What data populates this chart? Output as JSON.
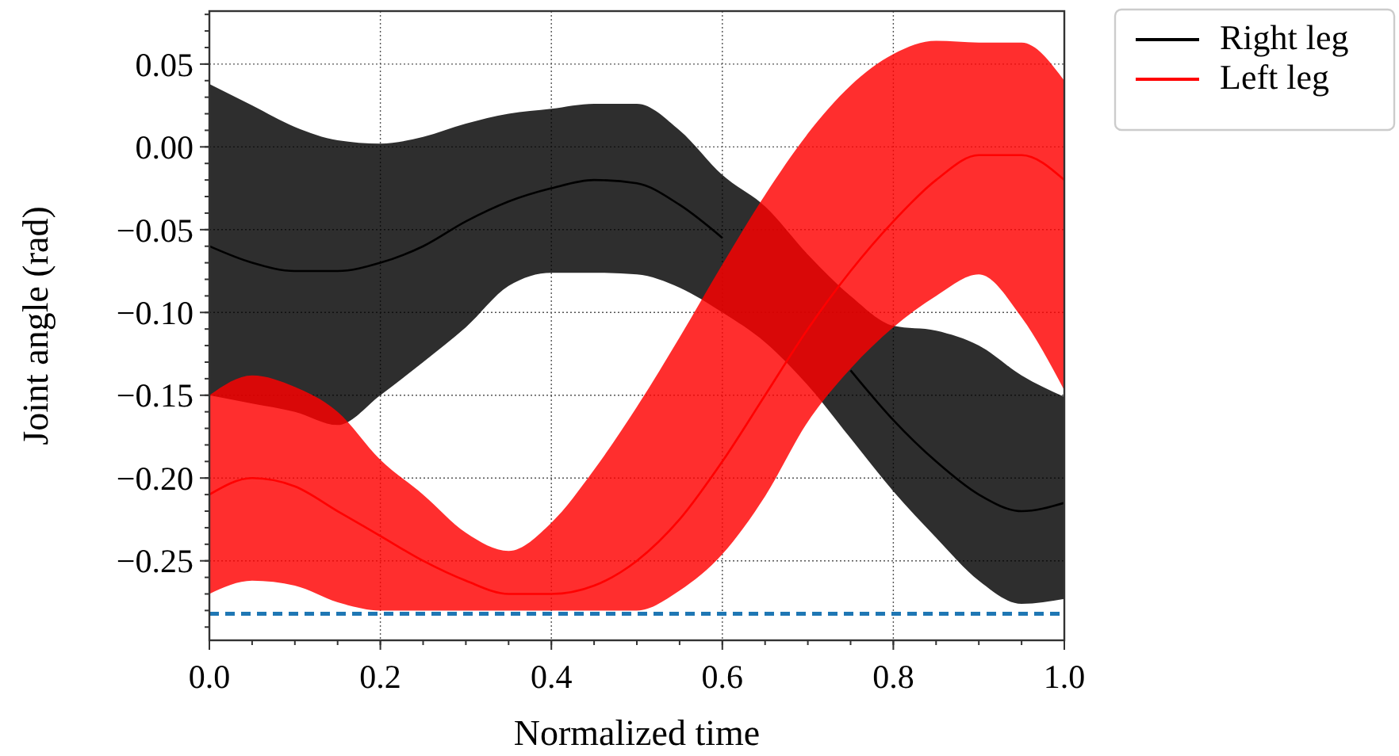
{
  "chart_data": {
    "type": "line",
    "xlabel": "Normalized time",
    "ylabel": "Joint angle (rad)",
    "x": [
      0,
      0.05,
      0.1,
      0.15,
      0.2,
      0.25,
      0.3,
      0.35,
      0.4,
      0.45,
      0.5,
      0.55,
      0.6,
      0.65,
      0.7,
      0.75,
      0.8,
      0.85,
      0.9,
      0.95,
      1.0
    ],
    "series": [
      {
        "name": "Right leg",
        "color": "#000000",
        "values": [
          -0.06,
          -0.07,
          -0.075,
          -0.075,
          -0.07,
          -0.06,
          -0.045,
          -0.033,
          -0.025,
          -0.02,
          -0.022,
          -0.035,
          -0.055,
          null,
          null,
          -0.135,
          -0.165,
          -0.19,
          -0.21,
          -0.22,
          -0.215
        ],
        "upper": [
          0.038,
          0.025,
          0.012,
          0.004,
          0.002,
          0.006,
          0.014,
          0.02,
          0.023,
          0.026,
          0.026,
          0.01,
          -0.017,
          -0.036,
          -0.065,
          -0.09,
          -0.108,
          -0.111,
          -0.12,
          -0.138,
          -0.151
        ],
        "lower": [
          -0.15,
          -0.155,
          -0.16,
          -0.168,
          -0.15,
          -0.13,
          -0.109,
          -0.084,
          -0.076,
          -0.076,
          -0.077,
          -0.085,
          -0.1,
          -0.118,
          -0.144,
          -0.176,
          -0.208,
          -0.236,
          -0.262,
          -0.276,
          -0.273
        ]
      },
      {
        "name": "Left leg",
        "color": "#ff0000",
        "values": [
          -0.21,
          -0.2,
          -0.205,
          -0.22,
          -0.235,
          -0.25,
          -0.262,
          -0.27,
          -0.27,
          -0.265,
          -0.25,
          -0.225,
          -0.19,
          -0.15,
          -0.11,
          -0.075,
          -0.045,
          -0.02,
          -0.005,
          -0.005,
          -0.02
        ],
        "upper": [
          -0.15,
          -0.138,
          -0.145,
          -0.16,
          -0.189,
          -0.21,
          -0.233,
          -0.244,
          -0.227,
          -0.195,
          -0.157,
          -0.115,
          -0.071,
          -0.029,
          0.008,
          0.037,
          0.056,
          0.064,
          0.063,
          0.063,
          0.04
        ],
        "lower": [
          -0.27,
          -0.262,
          -0.265,
          -0.275,
          -0.28,
          -0.28,
          -0.28,
          -0.28,
          -0.28,
          -0.28,
          -0.28,
          -0.268,
          -0.246,
          -0.211,
          -0.166,
          -0.134,
          -0.109,
          -0.09,
          -0.077,
          -0.103,
          -0.147
        ]
      }
    ],
    "xlim": [
      0,
      1
    ],
    "ylim": [
      -0.298,
      0.082
    ],
    "xticks": [
      {
        "value": 0,
        "label": "0.0"
      },
      {
        "value": 0.2,
        "label": "0.2"
      },
      {
        "value": 0.4,
        "label": "0.4"
      },
      {
        "value": 0.6,
        "label": "0.6"
      },
      {
        "value": 0.8,
        "label": "0.8"
      },
      {
        "value": 1,
        "label": "1.0"
      }
    ],
    "yticks": [
      {
        "value": -0.25,
        "label": "−0.25"
      },
      {
        "value": -0.2,
        "label": "−0.20"
      },
      {
        "value": -0.15,
        "label": "−0.15"
      },
      {
        "value": -0.1,
        "label": "−0.10"
      },
      {
        "value": -0.05,
        "label": "−0.05"
      },
      {
        "value": 0,
        "label": "0.00"
      },
      {
        "value": 0.05,
        "label": "0.05"
      }
    ],
    "ref_lines": [
      {
        "axis": "y",
        "value": -0.282,
        "color": "#1f77b4",
        "line_style": "dashed"
      }
    ],
    "grid": true,
    "legend": "top right",
    "line_style": "solid",
    "marker": "none"
  }
}
